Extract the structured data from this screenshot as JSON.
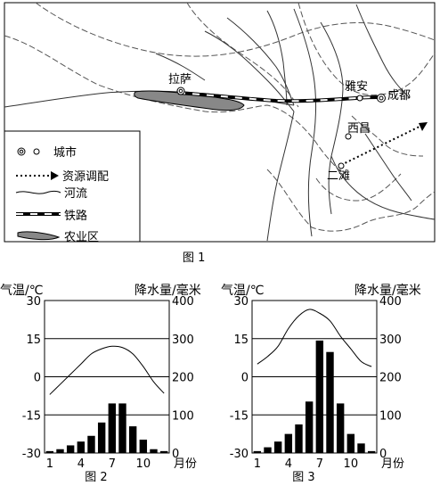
{
  "figure1": {
    "caption": "图 1",
    "places": {
      "lhasa": "拉萨",
      "yaan": "雅安",
      "chengdu": "成都",
      "xichang": "西昌",
      "ertan": "二滩"
    },
    "legend": [
      {
        "icon": "city-icon",
        "label": "城市"
      },
      {
        "icon": "resource-transfer-arrow-icon",
        "label": "资源调配"
      },
      {
        "icon": "river-icon",
        "label": "河流"
      },
      {
        "icon": "railway-icon",
        "label": "铁路"
      },
      {
        "icon": "farmland-icon",
        "label": "农业区"
      }
    ]
  },
  "chart_data": [
    {
      "type": "bar",
      "caption": "图 2",
      "xlabel": "月份",
      "ylabel_left": "气温/℃",
      "ylabel_right": "降水量/毫米",
      "x_ticks": [
        "1",
        "4",
        "7",
        "10"
      ],
      "y_left_ticks": [
        "30",
        "15",
        "0",
        "-15",
        "-30"
      ],
      "y_right_ticks": [
        "400",
        "300",
        "200",
        "100",
        "0"
      ],
      "y_left_range": [
        -30,
        30
      ],
      "y_right_range": [
        0,
        400
      ],
      "months": [
        1,
        2,
        3,
        4,
        5,
        6,
        7,
        8,
        9,
        10,
        11,
        12
      ],
      "precipitation": [
        5,
        10,
        20,
        30,
        45,
        80,
        130,
        130,
        70,
        35,
        10,
        5
      ],
      "temperature": [
        -7,
        -3,
        1,
        5,
        9,
        11,
        12,
        11.5,
        9,
        4,
        -2,
        -6.5
      ]
    },
    {
      "type": "bar",
      "caption": "图 3",
      "xlabel": "月份",
      "ylabel_left": "气温/℃",
      "ylabel_right": "降水量/毫米",
      "x_ticks": [
        "1",
        "4",
        "7",
        "10"
      ],
      "y_left_ticks": [
        "30",
        "15",
        "0",
        "-15",
        "-30"
      ],
      "y_right_ticks": [
        "400",
        "300",
        "200",
        "100",
        "0"
      ],
      "y_left_range": [
        -30,
        30
      ],
      "y_right_range": [
        0,
        400
      ],
      "months": [
        1,
        2,
        3,
        4,
        5,
        6,
        7,
        8,
        9,
        10,
        11,
        12
      ],
      "precipitation": [
        5,
        15,
        30,
        50,
        75,
        135,
        295,
        265,
        130,
        50,
        25,
        5
      ],
      "temperature": [
        5,
        8,
        12,
        19,
        24,
        26.5,
        25,
        22,
        16,
        11,
        6,
        4
      ]
    }
  ]
}
